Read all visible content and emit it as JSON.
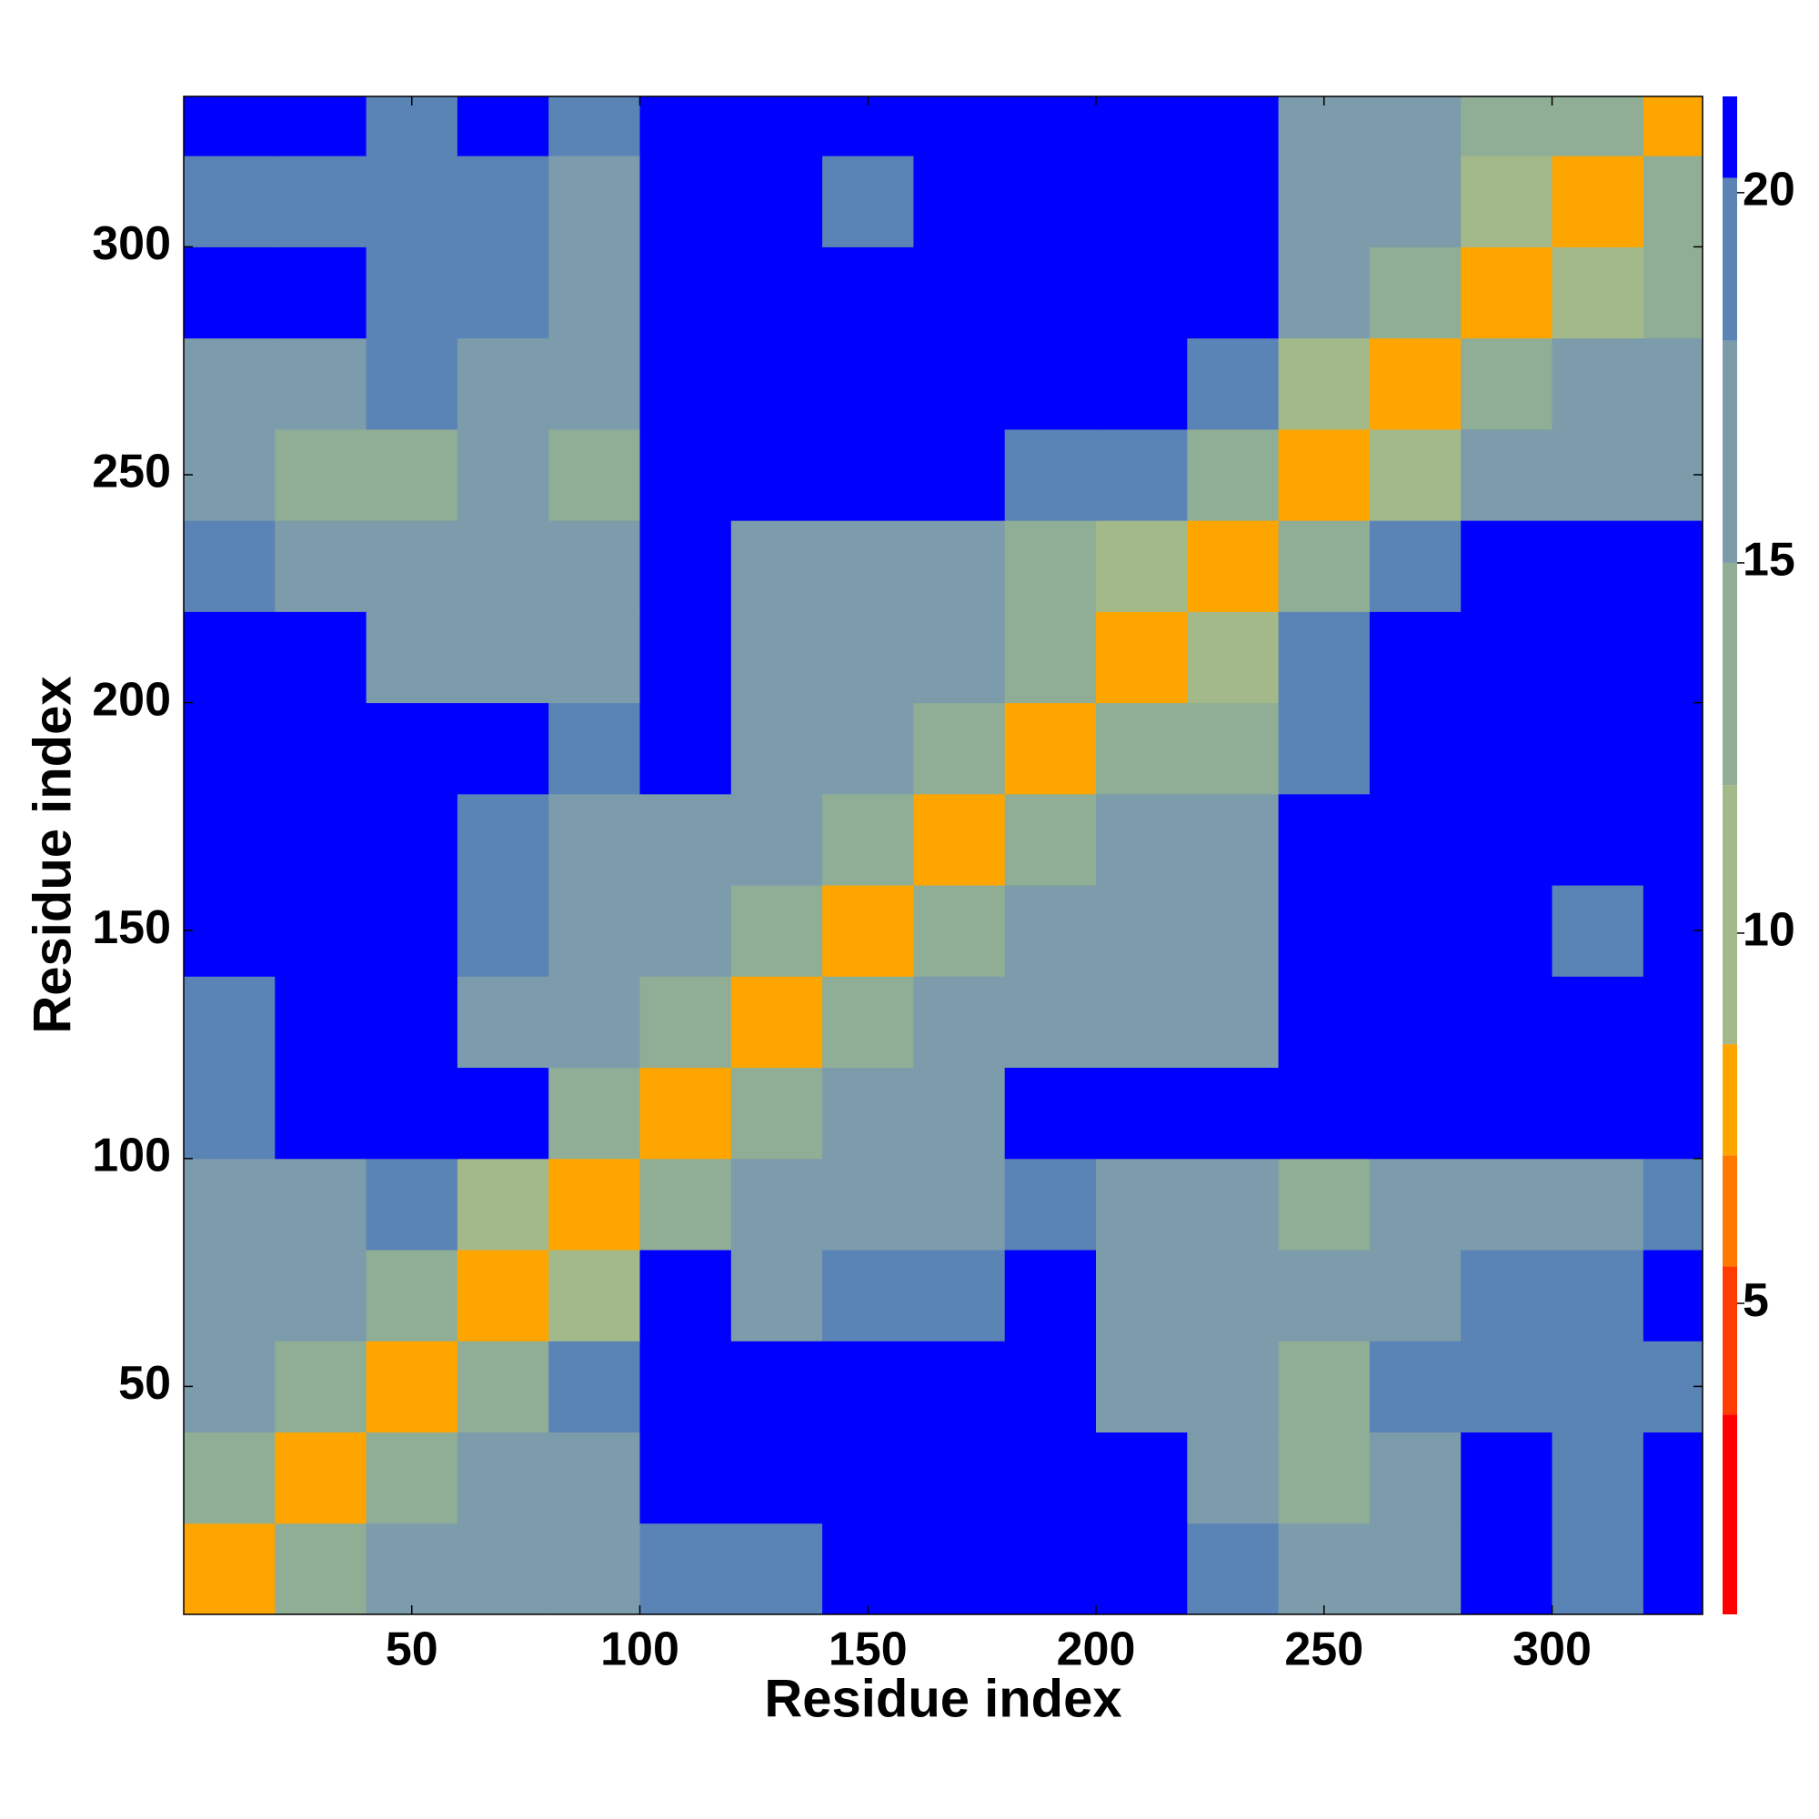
{
  "chart_data": {
    "type": "heatmap",
    "xlabel": "Residue index",
    "ylabel": "Residue index",
    "x_edges": [
      0,
      20,
      40,
      60,
      80,
      100,
      120,
      140,
      160,
      180,
      200,
      220,
      240,
      260,
      280,
      300,
      320,
      333
    ],
    "y_edges": [
      0,
      20,
      40,
      60,
      80,
      100,
      120,
      140,
      160,
      180,
      200,
      220,
      240,
      260,
      280,
      300,
      320,
      333
    ],
    "z": [
      [
        7,
        14,
        17,
        15,
        17,
        18,
        18,
        21,
        21,
        21,
        21,
        19,
        15,
        15,
        21,
        20,
        21
      ],
      [
        14,
        8,
        12,
        15,
        16,
        21,
        21,
        21,
        21,
        21,
        21,
        16,
        14,
        17,
        21,
        20,
        21
      ],
      [
        17,
        12,
        8,
        12,
        18,
        21,
        21,
        21,
        21,
        21,
        17,
        15,
        14,
        19,
        20,
        18,
        18
      ],
      [
        15,
        15,
        12,
        8,
        10,
        21,
        16,
        19,
        19,
        21,
        17,
        15,
        15,
        16,
        19,
        18,
        21
      ],
      [
        17,
        16,
        18,
        10,
        8,
        14,
        16,
        16,
        17,
        19,
        16,
        16,
        14,
        15,
        17,
        17,
        19
      ],
      [
        18,
        21,
        21,
        21,
        14,
        8,
        13,
        17,
        16,
        21,
        21,
        21,
        21,
        21,
        21,
        21,
        21
      ],
      [
        18,
        21,
        21,
        16,
        16,
        13,
        8,
        13,
        16,
        16,
        17,
        16,
        21,
        21,
        21,
        21,
        21
      ],
      [
        21,
        21,
        21,
        19,
        16,
        17,
        13,
        8,
        12,
        15,
        15,
        15,
        21,
        21,
        21,
        20,
        21
      ],
      [
        21,
        21,
        21,
        19,
        17,
        16,
        16,
        12,
        8,
        13,
        15,
        16,
        21,
        21,
        21,
        21,
        21
      ],
      [
        21,
        21,
        21,
        21,
        19,
        21,
        16,
        15,
        13,
        8,
        12,
        14,
        20,
        21,
        21,
        21,
        21
      ],
      [
        21,
        21,
        17,
        17,
        16,
        21,
        17,
        15,
        15,
        12,
        8,
        11,
        19,
        21,
        21,
        21,
        21
      ],
      [
        19,
        16,
        15,
        15,
        16,
        21,
        16,
        15,
        16,
        14,
        11,
        8,
        12,
        20,
        21,
        21,
        21
      ],
      [
        15,
        14,
        14,
        15,
        14,
        21,
        21,
        21,
        21,
        20,
        19,
        12,
        8,
        11,
        15,
        15,
        17
      ],
      [
        15,
        17,
        19,
        16,
        15,
        21,
        21,
        21,
        21,
        21,
        21,
        20,
        11,
        8,
        12,
        17,
        15
      ],
      [
        21,
        21,
        20,
        19,
        17,
        21,
        21,
        21,
        21,
        21,
        21,
        21,
        15,
        12,
        8,
        11,
        14
      ],
      [
        20,
        20,
        18,
        18,
        17,
        21,
        21,
        20,
        21,
        21,
        21,
        21,
        15,
        17,
        11,
        8,
        12
      ],
      [
        21,
        21,
        18,
        21,
        19,
        21,
        21,
        21,
        21,
        21,
        21,
        21,
        17,
        15,
        14,
        12,
        8
      ]
    ],
    "xlim": [
      0,
      333
    ],
    "ylim": [
      0,
      333
    ],
    "xticks": [
      50,
      100,
      150,
      200,
      250,
      300
    ],
    "yticks": [
      50,
      100,
      150,
      200,
      250,
      300
    ],
    "clim": [
      0.8,
      21.3
    ],
    "cticks": [
      5,
      10,
      15,
      20
    ],
    "color_levels": [
      {
        "value": 0.8,
        "color": "#ff0000"
      },
      {
        "value": 3.5,
        "color": "#ff3c00"
      },
      {
        "value": 5.5,
        "color": "#ff7800"
      },
      {
        "value": 7,
        "color": "#ffa500"
      },
      {
        "value": 8.5,
        "color": "#a3b98a"
      },
      {
        "value": 12,
        "color": "#8fae95"
      },
      {
        "value": 15,
        "color": "#7c9bab"
      },
      {
        "value": 18,
        "color": "#5b84b6"
      },
      {
        "value": 20.2,
        "color": "#0000ff"
      }
    ]
  }
}
